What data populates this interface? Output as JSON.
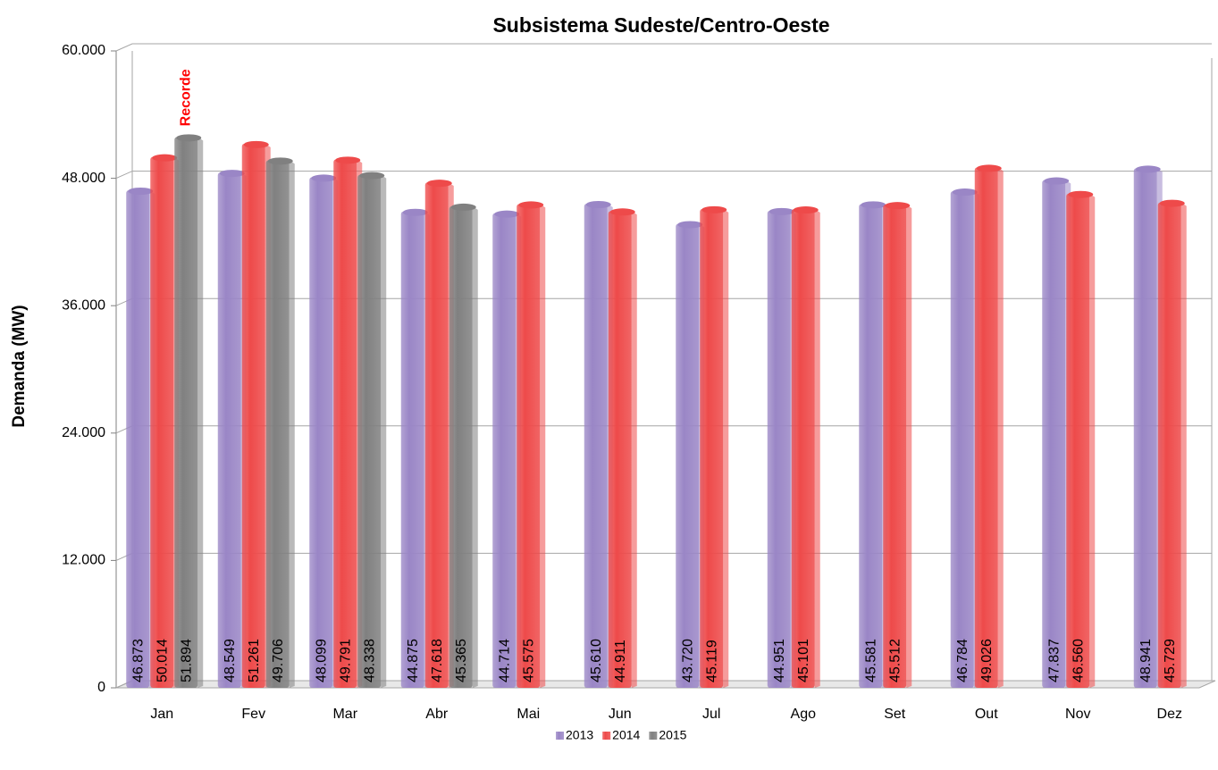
{
  "chart_data": {
    "type": "bar",
    "title": "Subsistema Sudeste/Centro-Oeste",
    "y_label": "Demanda (MW)",
    "annotation": "Recorde",
    "categories": [
      "Jan",
      "Fev",
      "Mar",
      "Abr",
      "Mai",
      "Jun",
      "Jul",
      "Ago",
      "Set",
      "Out",
      "Nov",
      "Dez"
    ],
    "series": [
      {
        "name": "2013",
        "color": "#9a86c6",
        "values": [
          46873,
          48549,
          48099,
          44875,
          44714,
          45610,
          43720,
          44951,
          45581,
          46784,
          47837,
          48941
        ],
        "value_labels": [
          "46.873",
          "48.549",
          "48.099",
          "44.875",
          "44.714",
          "45.610",
          "43.720",
          "44.951",
          "45.581",
          "46.784",
          "47.837",
          "48.941"
        ]
      },
      {
        "name": "2014",
        "color": "#ee4a4a",
        "values": [
          50014,
          51261,
          49791,
          47618,
          45575,
          44911,
          45119,
          45101,
          45512,
          49026,
          46560,
          45729
        ],
        "value_labels": [
          "50.014",
          "51.261",
          "49.791",
          "47.618",
          "45.575",
          "44.911",
          "45.119",
          "45.101",
          "45.512",
          "49.026",
          "46.560",
          "45.729"
        ]
      },
      {
        "name": "2015",
        "color": "#808080",
        "values": [
          51894,
          49706,
          48338,
          45365,
          null,
          null,
          null,
          null,
          null,
          null,
          null,
          null
        ],
        "value_labels": [
          "51.894",
          "49.706",
          "48.338",
          "45.365",
          null,
          null,
          null,
          null,
          null,
          null,
          null,
          null
        ]
      }
    ],
    "ylim": [
      0,
      60000
    ],
    "yticks": [
      0,
      {
        "value": 12000,
        "label": "12.000"
      },
      {
        "value": 24000,
        "label": "24.000"
      },
      {
        "value": 36000,
        "label": "36.000"
      },
      {
        "value": 48000,
        "label": "48.000"
      },
      {
        "value": 60000,
        "label": "60.000"
      }
    ],
    "grid": true,
    "legend": "bottom"
  }
}
